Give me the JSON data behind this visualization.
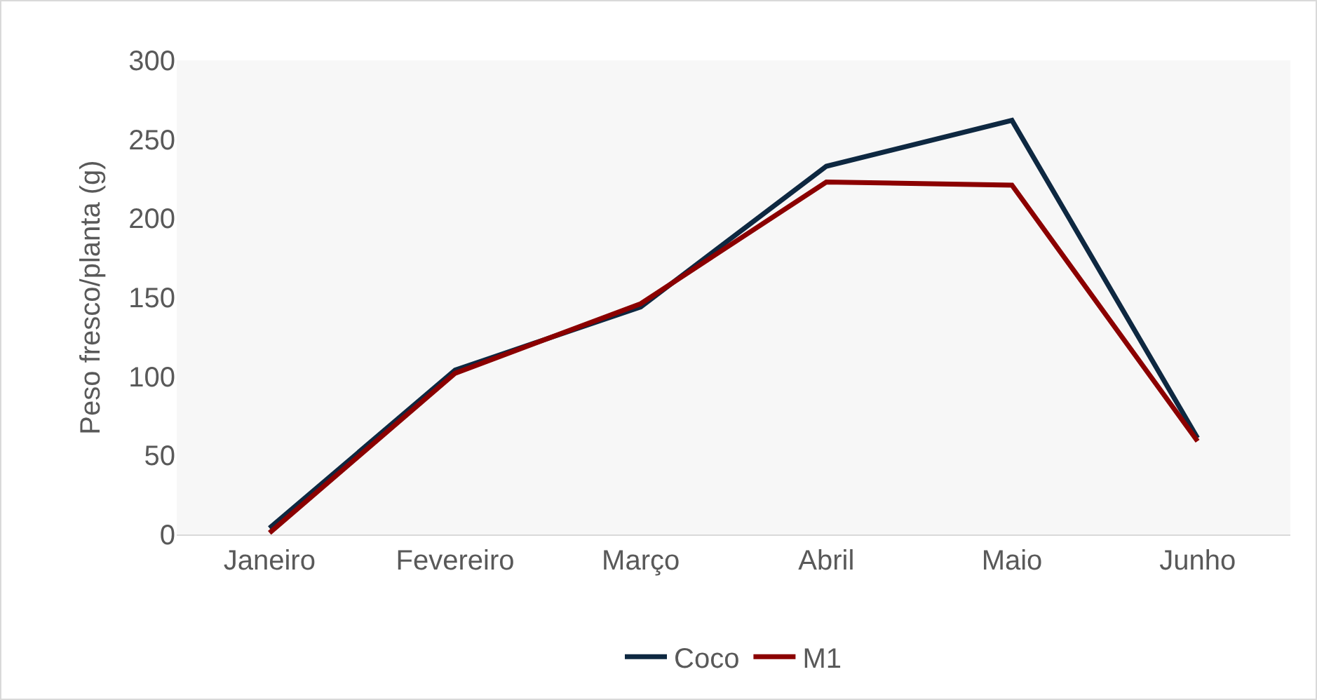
{
  "chart_data": {
    "type": "line",
    "ylabel": "Peso fresco/planta (g)",
    "categories": [
      "Janeiro",
      "Fevereiro",
      "Março",
      "Abril",
      "Maio",
      "Junho"
    ],
    "series": [
      {
        "name": "Coco",
        "color": "#0e2841",
        "values": [
          4,
          104,
          144,
          233,
          262,
          61
        ]
      },
      {
        "name": "M1",
        "color": "#8b0000",
        "values": [
          1,
          102,
          146,
          223,
          221,
          59
        ]
      }
    ],
    "ylim": [
      0,
      300
    ],
    "yticks": [
      0,
      50,
      100,
      150,
      200,
      250,
      300
    ],
    "grid": false,
    "legend": "bottom",
    "marker": "none",
    "line_style": "solid"
  }
}
